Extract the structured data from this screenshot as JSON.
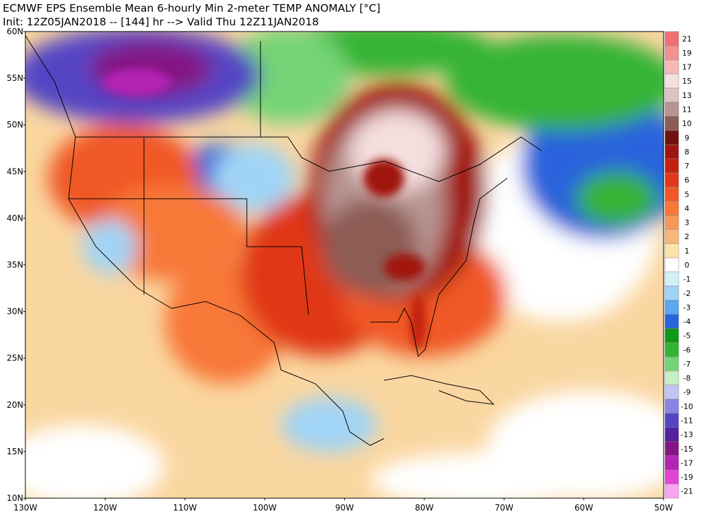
{
  "header": {
    "title": "ECMWF EPS Ensemble Mean 6-hourly Min 2-meter TEMP ANOMALY [°C]",
    "subtitle": "Init: 12Z05JAN2018 -- [144] hr --> Valid Thu 12Z11JAN2018"
  },
  "map": {
    "lat_labels": [
      "60N",
      "55N",
      "50N",
      "45N",
      "40N",
      "35N",
      "30N",
      "25N",
      "20N",
      "15N",
      "10N"
    ],
    "lon_labels": [
      "130W",
      "120W",
      "110W",
      "100W",
      "90W",
      "80W",
      "70W",
      "60W",
      "50W"
    ]
  },
  "colorbar": {
    "levels": [
      {
        "label": "21",
        "color": "#f07070"
      },
      {
        "label": "19",
        "color": "#f49090"
      },
      {
        "label": "17",
        "color": "#f8b8b8"
      },
      {
        "label": "15",
        "color": "#f4dede"
      },
      {
        "label": "13",
        "color": "#dcc4c2"
      },
      {
        "label": "11",
        "color": "#b89490"
      },
      {
        "label": "10",
        "color": "#8c5c54"
      },
      {
        "label": "9",
        "color": "#701010"
      },
      {
        "label": "8",
        "color": "#a01410"
      },
      {
        "label": "7",
        "color": "#c42210"
      },
      {
        "label": "6",
        "color": "#e03818"
      },
      {
        "label": "5",
        "color": "#f05828"
      },
      {
        "label": "4",
        "color": "#f87838"
      },
      {
        "label": "3",
        "color": "#f89858"
      },
      {
        "label": "2",
        "color": "#fab878"
      },
      {
        "label": "1",
        "color": "#fae4a8"
      },
      {
        "label": "0",
        "color": "#ffffff"
      },
      {
        "label": "-1",
        "color": "#d2f0f8"
      },
      {
        "label": "-2",
        "color": "#a0d4f6"
      },
      {
        "label": "-3",
        "color": "#5aa8ee"
      },
      {
        "label": "-4",
        "color": "#2a64dc"
      },
      {
        "label": "-5",
        "color": "#109818"
      },
      {
        "label": "-6",
        "color": "#34b434"
      },
      {
        "label": "-7",
        "color": "#74d474"
      },
      {
        "label": "-8",
        "color": "#c4f0c4"
      },
      {
        "label": "-9",
        "color": "#c4c4f2"
      },
      {
        "label": "-10",
        "color": "#8a84e4"
      },
      {
        "label": "-11",
        "color": "#5444c4"
      },
      {
        "label": "-13",
        "color": "#5420a0"
      },
      {
        "label": "-15",
        "color": "#841484"
      },
      {
        "label": "-17",
        "color": "#b424b4"
      },
      {
        "label": "-19",
        "color": "#e444d4"
      },
      {
        "label": "-21",
        "color": "#f8a4f0"
      }
    ]
  }
}
